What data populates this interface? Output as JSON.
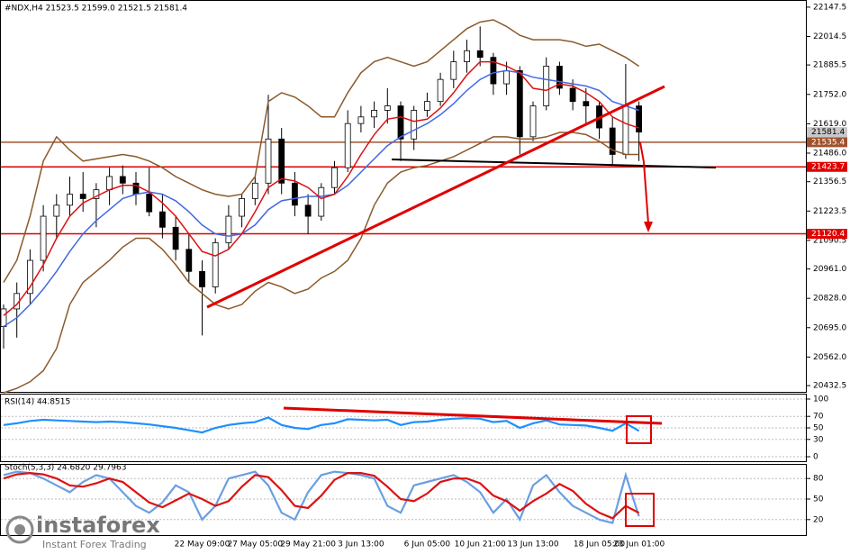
{
  "chart_data": [
    {
      "type": "candlestick",
      "title": "#NDX,H4  21523.5 21599.0 21521.5 21581.4",
      "categories": [
        null,
        null,
        null,
        null,
        null,
        null,
        null,
        null,
        null,
        null,
        null,
        null,
        null,
        null,
        null,
        "22 May 09:00",
        null,
        null,
        null,
        "27 May 05:00",
        null,
        null,
        null,
        "29 May 21:00",
        null,
        null,
        null,
        "3 Jun 13:00",
        null,
        null,
        null,
        null,
        "6 Jun 05:00",
        null,
        null,
        null,
        "10 Jun 21:00",
        null,
        null,
        null,
        "13 Jun 13:00",
        null,
        null,
        null,
        null,
        "18 Jun 05:00",
        null,
        null,
        "23 Jun 01:00"
      ],
      "open": [
        20700,
        20780,
        20850,
        21000,
        21200,
        21250,
        21300,
        21280,
        21320,
        21380,
        21350,
        21300,
        21220,
        21150,
        21050,
        20950,
        20880,
        21080,
        21200,
        21280,
        21350,
        21550,
        21350,
        21250,
        21200,
        21330,
        21420,
        21620,
        21650,
        21680,
        21700,
        21550,
        21680,
        21720,
        21820,
        21900,
        21950,
        21920,
        21800,
        21860,
        21560,
        21700,
        21880,
        21780,
        21720,
        21700,
        21600,
        21480,
        21700
      ],
      "high": [
        20800,
        20900,
        21050,
        21250,
        21300,
        21380,
        21400,
        21350,
        21420,
        21430,
        21400,
        21420,
        21300,
        21200,
        21120,
        21000,
        21100,
        21250,
        21300,
        21380,
        21750,
        21600,
        21400,
        21300,
        21350,
        21450,
        21680,
        21700,
        21720,
        21780,
        21720,
        21700,
        21760,
        21850,
        21950,
        22000,
        22060,
        21940,
        21900,
        21880,
        21720,
        21920,
        21900,
        21820,
        21780,
        21720,
        21650,
        21890,
        21720
      ],
      "low": [
        20600,
        20650,
        20800,
        20950,
        21100,
        21200,
        21220,
        21150,
        21250,
        21300,
        21250,
        21200,
        21100,
        21000,
        20900,
        20660,
        20850,
        21050,
        21150,
        21250,
        21300,
        21300,
        21200,
        21120,
        21180,
        21300,
        21400,
        21580,
        21600,
        21620,
        21450,
        21500,
        21650,
        21700,
        21780,
        21850,
        21880,
        21750,
        21750,
        21480,
        21540,
        21680,
        21750,
        21680,
        21620,
        21550,
        21430,
        21460,
        21450
      ],
      "close": [
        20780,
        20850,
        21000,
        21200,
        21250,
        21300,
        21280,
        21320,
        21380,
        21350,
        21300,
        21220,
        21150,
        21050,
        20950,
        20880,
        21080,
        21200,
        21280,
        21350,
        21550,
        21350,
        21250,
        21200,
        21330,
        21420,
        21620,
        21650,
        21680,
        21700,
        21550,
        21680,
        21720,
        21820,
        21900,
        21950,
        21920,
        21800,
        21860,
        21560,
        21700,
        21880,
        21780,
        21720,
        21700,
        21600,
        21480,
        21700,
        21581.4
      ],
      "overlays": [
        {
          "color": "#8b5a2b",
          "values": [
            20900,
            21000,
            21200,
            21450,
            21560,
            21500,
            21450,
            21460,
            21470,
            21480,
            21470,
            21450,
            21420,
            21380,
            21350,
            21320,
            21300,
            21290,
            21300,
            21380,
            21720,
            21760,
            21740,
            21700,
            21650,
            21650,
            21760,
            21850,
            21900,
            21920,
            21900,
            21880,
            21900,
            21950,
            22000,
            22050,
            22080,
            22090,
            22060,
            22020,
            22000,
            22000,
            22000,
            21990,
            21970,
            21980,
            21950,
            21920,
            21880
          ]
        },
        {
          "color": "#8b5a2b",
          "values": [
            20400,
            20420,
            20450,
            20500,
            20600,
            20800,
            20900,
            20950,
            21000,
            21060,
            21100,
            21100,
            21050,
            20980,
            20900,
            20850,
            20800,
            20780,
            20800,
            20860,
            20900,
            20880,
            20850,
            20870,
            20920,
            20950,
            21000,
            21100,
            21250,
            21350,
            21400,
            21420,
            21430,
            21450,
            21470,
            21500,
            21530,
            21560,
            21560,
            21550,
            21550,
            21560,
            21580,
            21580,
            21570,
            21540,
            21500,
            21480,
            21480
          ]
        },
        {
          "color": "#4169e1",
          "values": [
            20700,
            20740,
            20800,
            20870,
            20950,
            21040,
            21120,
            21180,
            21230,
            21280,
            21300,
            21310,
            21300,
            21270,
            21220,
            21160,
            21120,
            21110,
            21120,
            21160,
            21230,
            21270,
            21280,
            21290,
            21290,
            21300,
            21340,
            21400,
            21460,
            21520,
            21560,
            21590,
            21620,
            21660,
            21710,
            21770,
            21820,
            21850,
            21860,
            21850,
            21830,
            21820,
            21810,
            21800,
            21790,
            21770,
            21720,
            21700,
            21680
          ]
        },
        {
          "color": "#dd1111",
          "values": [
            20750,
            20800,
            20880,
            20980,
            21100,
            21200,
            21260,
            21290,
            21320,
            21340,
            21340,
            21310,
            21260,
            21200,
            21120,
            21040,
            21020,
            21050,
            21120,
            21220,
            21330,
            21370,
            21360,
            21330,
            21280,
            21300,
            21380,
            21480,
            21570,
            21640,
            21650,
            21630,
            21640,
            21690,
            21760,
            21840,
            21900,
            21900,
            21880,
            21850,
            21780,
            21770,
            21800,
            21790,
            21760,
            21720,
            21650,
            21620,
            21600
          ]
        }
      ],
      "levels": [
        {
          "value": 21581.4,
          "label": "21581.4",
          "color": "#c8c8c8"
        },
        {
          "value": 21535.4,
          "label": "21535.4",
          "color": "#a0522d"
        },
        {
          "value": 21423.7,
          "label": "21423.7",
          "color": "#e00000"
        },
        {
          "value": 21120.4,
          "label": "21120.4",
          "color": "#e00000"
        }
      ],
      "ylim": [
        20416.5,
        22163.5
      ],
      "yticks": [
        22147.5,
        22014.5,
        21885.5,
        {
          "value": 21752.0,
          "label": "21752.0"
        },
        {
          "value": 21619.0,
          "label": "21619.0"
        },
        {
          "value": 21486.0,
          "label": "21486.0"
        },
        21356.5,
        21223.5,
        21090.5,
        {
          "value": 20961.0,
          "label": "20961.0"
        },
        {
          "value": 20828.0,
          "label": "20828.0"
        },
        {
          "value": 20695.0,
          "label": "20695.0"
        },
        {
          "value": 20562.0,
          "label": "20562.0"
        },
        20432.5
      ]
    },
    {
      "type": "line",
      "title": "RSI(14) 44.8515",
      "color": "#1e90ff",
      "values": [
        55,
        58,
        62,
        64,
        63,
        62,
        61,
        60,
        61,
        60,
        58,
        56,
        53,
        50,
        46,
        42,
        50,
        55,
        58,
        60,
        68,
        55,
        50,
        48,
        55,
        58,
        65,
        64,
        63,
        64,
        55,
        60,
        61,
        64,
        66,
        67,
        66,
        60,
        62,
        50,
        58,
        63,
        56,
        55,
        54,
        50,
        45,
        58,
        44.85
      ],
      "ylim": [
        0,
        100
      ],
      "yticks": [
        0,
        30,
        50,
        70,
        100
      ]
    },
    {
      "type": "line",
      "title": "Stoch(5,3,3) 24.6820 29.7963",
      "series": [
        {
          "color": "#6a9fe0",
          "values": [
            85,
            90,
            88,
            80,
            70,
            60,
            75,
            85,
            80,
            60,
            40,
            30,
            45,
            70,
            60,
            20,
            40,
            80,
            85,
            90,
            70,
            30,
            20,
            60,
            85,
            90,
            88,
            85,
            80,
            40,
            30,
            70,
            75,
            80,
            85,
            75,
            60,
            30,
            50,
            20,
            70,
            85,
            60,
            40,
            30,
            20,
            15,
            85,
            24.68
          ]
        },
        {
          "color": "#dd1111",
          "values": [
            80,
            86,
            88,
            86,
            80,
            70,
            68,
            73,
            80,
            75,
            60,
            45,
            38,
            48,
            58,
            50,
            40,
            47,
            68,
            85,
            82,
            63,
            40,
            37,
            55,
            78,
            88,
            88,
            84,
            68,
            50,
            47,
            58,
            75,
            80,
            80,
            73,
            55,
            47,
            33,
            47,
            58,
            72,
            62,
            43,
            30,
            22,
            40,
            29.8
          ]
        }
      ],
      "ylim": [
        0,
        100
      ],
      "yticks": [
        20,
        50,
        80
      ]
    }
  ],
  "branding": {
    "logo": "instaforex",
    "tagline": "Instant Forex Trading"
  }
}
